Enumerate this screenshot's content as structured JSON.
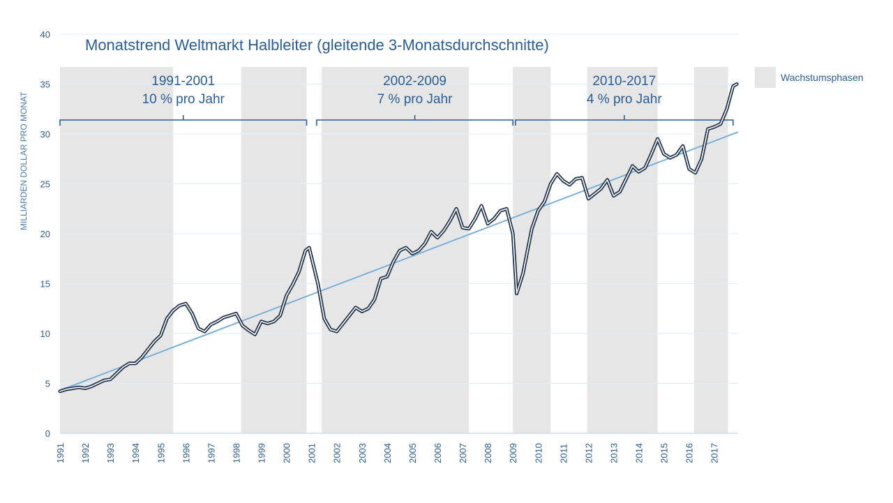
{
  "chart_data": {
    "type": "line",
    "title": "Monatstrend Weltmarkt Halbleiter (gleitende 3-Monatsdurchschnitte)",
    "ylabel": "MILLIARDEN DOLLAR PRO MONAT",
    "xlabel": "",
    "ylim": [
      0,
      40
    ],
    "yticks": [
      "0",
      "5",
      "10",
      "15",
      "20",
      "25",
      "30",
      "35",
      "40"
    ],
    "xlim": [
      1991,
      2017.95
    ],
    "xticks": [
      "1991",
      "1992",
      "1993",
      "1994",
      "1995",
      "1996",
      "1997",
      "1998",
      "1999",
      "2000",
      "2001",
      "2002",
      "2003",
      "2004",
      "2005",
      "2006",
      "2007",
      "2008",
      "2009",
      "2010",
      "2011",
      "2012",
      "2013",
      "2014",
      "2015",
      "2016",
      "2017"
    ],
    "grid": true,
    "legend": {
      "position": "right",
      "entries": [
        "Wachstumsphasen"
      ]
    },
    "colors": {
      "series": "#1d2f4a",
      "trend": "#7ab0d8",
      "shade": "#e6e6e6",
      "text": "#2a5d93",
      "bracket": "#2a5d93"
    },
    "growth_phases": [
      {
        "start": 1991.0,
        "end": 1995.5
      },
      {
        "start": 1998.2,
        "end": 2000.8
      },
      {
        "start": 2001.4,
        "end": 2007.25
      },
      {
        "start": 2009.0,
        "end": 2010.5
      },
      {
        "start": 2011.95,
        "end": 2014.75
      },
      {
        "start": 2016.2,
        "end": 2017.55
      }
    ],
    "periods": [
      {
        "label": "1991-2001",
        "rate": "10 % pro Jahr",
        "start": 1991.0,
        "end": 2000.8
      },
      {
        "label": "2002-2009",
        "rate": "7 % pro Jahr",
        "start": 2001.2,
        "end": 2009.0
      },
      {
        "label": "2010-2017",
        "rate": "4 % pro Jahr",
        "start": 2009.1,
        "end": 2017.75
      }
    ],
    "trend": {
      "x": [
        1991.0,
        2017.95
      ],
      "y": [
        4.3,
        30.2
      ]
    },
    "series": [
      {
        "x": [
          1991.0,
          1991.25,
          1991.5,
          1991.75,
          1992.0,
          1992.25,
          1992.5,
          1992.75,
          1993.0,
          1993.25,
          1993.5,
          1993.75,
          1994.0,
          1994.25,
          1994.5,
          1994.75,
          1995.0,
          1995.25,
          1995.5,
          1995.75,
          1996.0,
          1996.25,
          1996.5,
          1996.75,
          1997.0,
          1997.25,
          1997.5,
          1997.75,
          1998.0,
          1998.25,
          1998.5,
          1998.75,
          1999.0,
          1999.25,
          1999.5,
          1999.75,
          2000.0,
          2000.25,
          2000.5,
          2000.75,
          2000.9,
          2001.25,
          2001.5,
          2001.75,
          2002.0,
          2002.25,
          2002.5,
          2002.75,
          2003.0,
          2003.25,
          2003.5,
          2003.75,
          2004.0,
          2004.25,
          2004.5,
          2004.75,
          2005.0,
          2005.25,
          2005.5,
          2005.75,
          2006.0,
          2006.25,
          2006.5,
          2006.75,
          2007.0,
          2007.25,
          2007.5,
          2007.75,
          2008.0,
          2008.25,
          2008.5,
          2008.75,
          2009.0,
          2009.15,
          2009.4,
          2009.75,
          2010.0,
          2010.25,
          2010.5,
          2010.75,
          2011.0,
          2011.25,
          2011.5,
          2011.75,
          2012.0,
          2012.25,
          2012.5,
          2012.75,
          2013.0,
          2013.25,
          2013.5,
          2013.75,
          2014.0,
          2014.25,
          2014.5,
          2014.75,
          2015.0,
          2015.25,
          2015.5,
          2015.75,
          2016.0,
          2016.25,
          2016.5,
          2016.75,
          2017.0,
          2017.25,
          2017.5,
          2017.75,
          2017.9
        ],
        "values": [
          4.2,
          4.4,
          4.5,
          4.6,
          4.5,
          4.7,
          5.0,
          5.3,
          5.4,
          6.0,
          6.6,
          7.0,
          7.0,
          7.6,
          8.4,
          9.2,
          9.8,
          11.5,
          12.3,
          12.8,
          13.0,
          12.0,
          10.5,
          10.2,
          10.9,
          11.2,
          11.6,
          11.8,
          12.0,
          10.8,
          10.3,
          9.9,
          11.2,
          11.0,
          11.2,
          11.8,
          13.8,
          14.9,
          16.2,
          18.3,
          18.6,
          15.0,
          11.5,
          10.4,
          10.2,
          11.0,
          11.8,
          12.6,
          12.2,
          12.5,
          13.4,
          15.5,
          15.7,
          17.2,
          18.3,
          18.6,
          18.0,
          18.3,
          19.0,
          20.2,
          19.6,
          20.3,
          21.3,
          22.5,
          20.6,
          20.5,
          21.5,
          22.8,
          21.0,
          21.5,
          22.3,
          22.5,
          20.0,
          14.0,
          16.0,
          20.5,
          22.3,
          23.2,
          25.0,
          26.0,
          25.3,
          24.9,
          25.5,
          25.6,
          23.5,
          24.0,
          24.5,
          25.4,
          23.8,
          24.2,
          25.5,
          26.8,
          26.2,
          26.6,
          28.0,
          29.5,
          28.0,
          27.6,
          27.9,
          28.8,
          26.5,
          26.1,
          27.5,
          30.5,
          30.7,
          31.0,
          32.5,
          34.8,
          35.0
        ]
      }
    ]
  }
}
